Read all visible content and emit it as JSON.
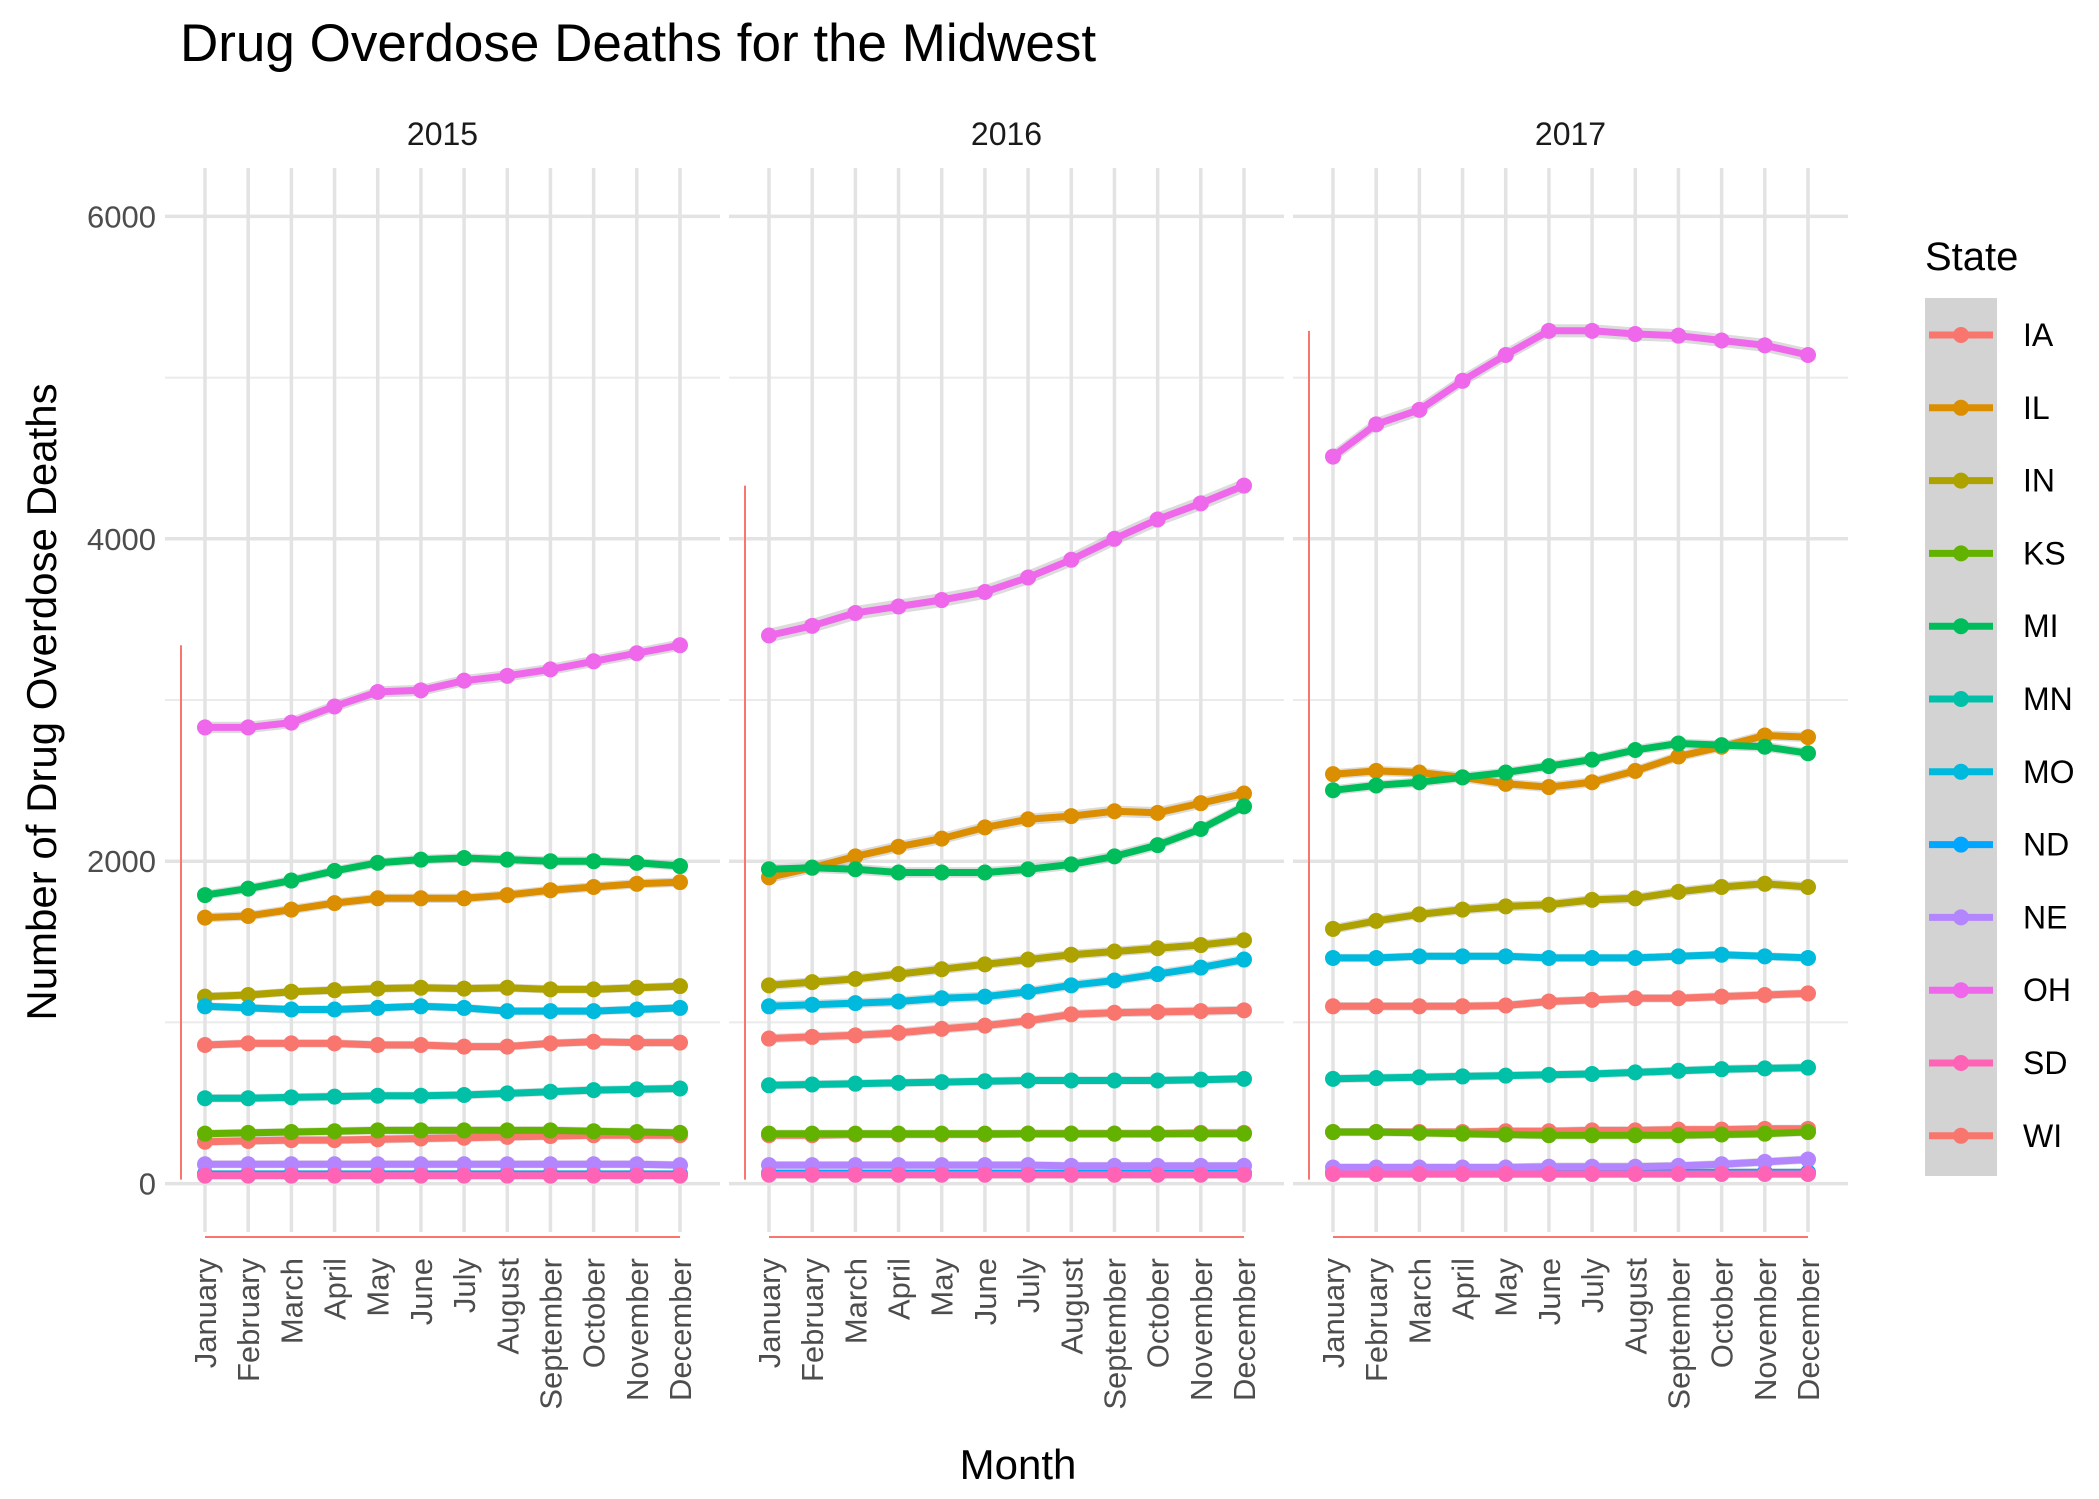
{
  "chart_data": {
    "type": "line",
    "title": "Drug Overdose Deaths for the Midwest",
    "xlabel": "Month",
    "ylabel": "Number of Drug Overdose Deaths",
    "ylim": [
      -300,
      6300
    ],
    "y_ticks": [
      0,
      2000,
      4000,
      6000
    ],
    "grid": true,
    "smoothing_band": true,
    "legend": {
      "title": "State",
      "position": "right"
    },
    "facets": [
      "2015",
      "2016",
      "2017"
    ],
    "categories": [
      "January",
      "February",
      "March",
      "April",
      "May",
      "June",
      "July",
      "August",
      "September",
      "October",
      "November",
      "December"
    ],
    "series": [
      {
        "name": "IA",
        "color": "#F8766D",
        "values": {
          "2015": [
            260,
            265,
            270,
            270,
            275,
            280,
            285,
            290,
            295,
            300,
            300,
            300
          ],
          "2016": [
            300,
            300,
            305,
            305,
            305,
            305,
            310,
            310,
            310,
            310,
            315,
            315
          ],
          "2017": [
            320,
            320,
            320,
            320,
            325,
            325,
            330,
            330,
            335,
            335,
            340,
            340
          ]
        }
      },
      {
        "name": "IL",
        "color": "#DB8E00",
        "values": {
          "2015": [
            1650,
            1660,
            1700,
            1740,
            1770,
            1770,
            1770,
            1790,
            1820,
            1840,
            1860,
            1870
          ],
          "2016": [
            1900,
            1960,
            2030,
            2090,
            2140,
            2210,
            2260,
            2280,
            2310,
            2300,
            2360,
            2420
          ],
          "2017": [
            2540,
            2560,
            2550,
            2520,
            2480,
            2460,
            2490,
            2560,
            2650,
            2710,
            2780,
            2770
          ]
        }
      },
      {
        "name": "IN",
        "color": "#AEA200",
        "values": {
          "2015": [
            1160,
            1170,
            1190,
            1200,
            1210,
            1215,
            1210,
            1215,
            1205,
            1205,
            1215,
            1225
          ],
          "2016": [
            1230,
            1250,
            1270,
            1300,
            1330,
            1360,
            1390,
            1420,
            1440,
            1460,
            1480,
            1510
          ],
          "2017": [
            1580,
            1630,
            1670,
            1700,
            1720,
            1730,
            1760,
            1770,
            1810,
            1840,
            1860,
            1840
          ]
        }
      },
      {
        "name": "KS",
        "color": "#64B200",
        "values": {
          "2015": [
            310,
            315,
            320,
            325,
            330,
            330,
            330,
            330,
            330,
            325,
            320,
            315
          ],
          "2016": [
            310,
            310,
            310,
            310,
            310,
            310,
            310,
            310,
            310,
            310,
            310,
            310
          ],
          "2017": [
            320,
            320,
            315,
            310,
            305,
            300,
            300,
            300,
            300,
            305,
            310,
            320
          ]
        }
      },
      {
        "name": "MI",
        "color": "#00BD5C",
        "values": {
          "2015": [
            1790,
            1830,
            1880,
            1940,
            1990,
            2010,
            2020,
            2010,
            2000,
            2000,
            1990,
            1970
          ],
          "2016": [
            1950,
            1960,
            1950,
            1930,
            1930,
            1930,
            1950,
            1980,
            2030,
            2100,
            2200,
            2340
          ],
          "2017": [
            2440,
            2470,
            2490,
            2520,
            2550,
            2590,
            2630,
            2690,
            2730,
            2720,
            2710,
            2670
          ]
        }
      },
      {
        "name": "MN",
        "color": "#00C1A7",
        "values": {
          "2015": [
            530,
            530,
            535,
            540,
            545,
            545,
            550,
            560,
            570,
            580,
            585,
            590
          ],
          "2016": [
            610,
            615,
            620,
            625,
            630,
            635,
            640,
            640,
            640,
            640,
            645,
            650
          ],
          "2017": [
            650,
            655,
            660,
            665,
            670,
            675,
            680,
            690,
            700,
            710,
            715,
            720
          ]
        }
      },
      {
        "name": "MO",
        "color": "#00BADE",
        "values": {
          "2015": [
            1100,
            1090,
            1080,
            1080,
            1090,
            1100,
            1090,
            1070,
            1070,
            1070,
            1080,
            1090
          ],
          "2016": [
            1100,
            1110,
            1120,
            1130,
            1150,
            1160,
            1190,
            1230,
            1260,
            1300,
            1340,
            1390
          ],
          "2017": [
            1400,
            1400,
            1410,
            1410,
            1410,
            1400,
            1400,
            1400,
            1410,
            1420,
            1410,
            1400
          ]
        }
      },
      {
        "name": "ND",
        "color": "#00A6FF",
        "values": {
          "2015": [
            60,
            60,
            60,
            60,
            60,
            60,
            60,
            60,
            60,
            60,
            60,
            60
          ],
          "2016": [
            65,
            65,
            65,
            65,
            65,
            65,
            65,
            65,
            65,
            65,
            65,
            65
          ],
          "2017": [
            70,
            70,
            70,
            70,
            70,
            70,
            70,
            70,
            70,
            70,
            70,
            70
          ]
        }
      },
      {
        "name": "NE",
        "color": "#B385FF",
        "values": {
          "2015": [
            120,
            120,
            120,
            120,
            120,
            120,
            120,
            120,
            120,
            120,
            120,
            115
          ],
          "2016": [
            115,
            115,
            115,
            115,
            115,
            115,
            115,
            110,
            110,
            110,
            110,
            110
          ],
          "2017": [
            100,
            100,
            100,
            100,
            100,
            105,
            105,
            105,
            110,
            120,
            135,
            150
          ]
        }
      },
      {
        "name": "OH",
        "color": "#EF67EB",
        "values": {
          "2015": [
            2830,
            2830,
            2860,
            2960,
            3050,
            3060,
            3120,
            3150,
            3190,
            3240,
            3290,
            3340
          ],
          "2016": [
            3400,
            3460,
            3540,
            3580,
            3620,
            3670,
            3760,
            3870,
            4000,
            4120,
            4220,
            4330
          ],
          "2017": [
            4510,
            4710,
            4800,
            4980,
            5140,
            5290,
            5290,
            5270,
            5260,
            5230,
            5200,
            5140
          ]
        }
      },
      {
        "name": "SD",
        "color": "#FF63B6",
        "values": {
          "2015": [
            50,
            50,
            50,
            50,
            50,
            50,
            50,
            50,
            50,
            50,
            50,
            50
          ],
          "2016": [
            55,
            55,
            55,
            55,
            55,
            55,
            55,
            55,
            55,
            55,
            55,
            55
          ],
          "2017": [
            60,
            60,
            60,
            60,
            60,
            60,
            60,
            60,
            60,
            60,
            60,
            60
          ]
        }
      },
      {
        "name": "WI",
        "color": "#F8766D",
        "values": {
          "2015": [
            860,
            870,
            870,
            870,
            860,
            860,
            850,
            850,
            870,
            880,
            875,
            875
          ],
          "2016": [
            900,
            910,
            920,
            935,
            960,
            980,
            1010,
            1050,
            1060,
            1065,
            1070,
            1075
          ],
          "2017": [
            1100,
            1100,
            1100,
            1100,
            1105,
            1130,
            1140,
            1150,
            1150,
            1160,
            1170,
            1180
          ]
        }
      }
    ]
  }
}
